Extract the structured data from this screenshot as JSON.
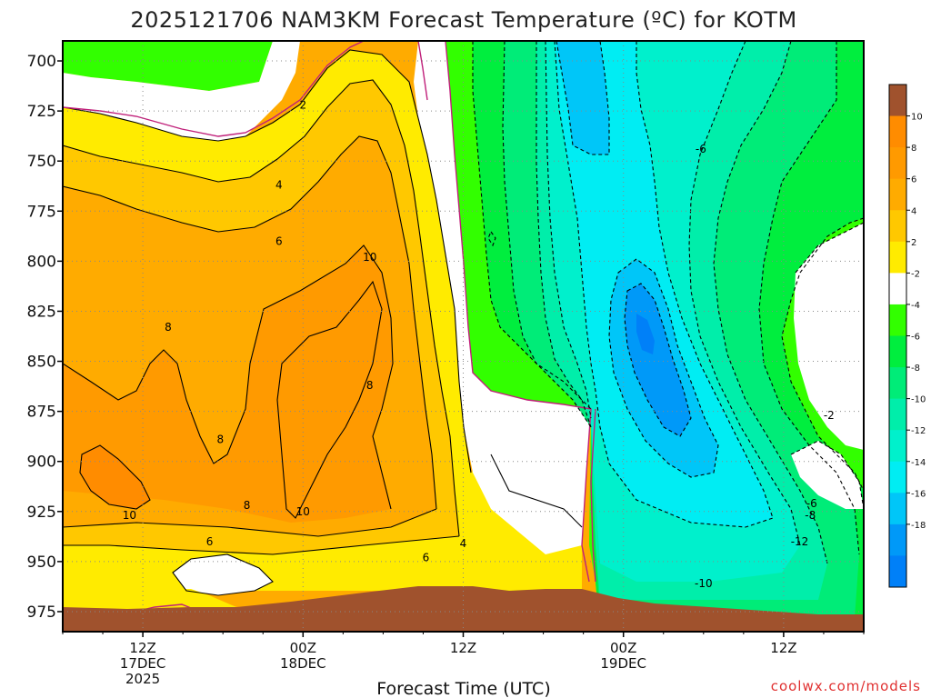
{
  "chart_data": {
    "type": "heatmap",
    "title": "2025121706 NAM3KM Forecast Temperature (ºC) for KOTM",
    "xlabel": "Forecast Time (UTC)",
    "ylabel": "",
    "y_ticks": [
      700,
      725,
      750,
      775,
      800,
      825,
      850,
      875,
      900,
      925,
      950,
      975
    ],
    "ylim": [
      975,
      700
    ],
    "x_ticks": [
      {
        "hour": 6,
        "l1": "12Z",
        "l2": "17DEC",
        "l3": "2025"
      },
      {
        "hour": 18,
        "l1": "00Z",
        "l2": "18DEC",
        "l3": ""
      },
      {
        "hour": 30,
        "l1": "12Z",
        "l2": "",
        "l3": ""
      },
      {
        "hour": 42,
        "l1": "00Z",
        "l2": "19DEC",
        "l3": ""
      },
      {
        "hour": 54,
        "l1": "12Z",
        "l2": "",
        "l3": ""
      }
    ],
    "xlim_hours": [
      0,
      60
    ],
    "colorbar": {
      "labels": [
        10,
        8,
        6,
        4,
        2,
        -2,
        -4,
        -6,
        -8,
        -10,
        -12,
        -14,
        -16,
        -18
      ],
      "bins": [
        {
          "range": "> 12",
          "color": "#a0522d"
        },
        {
          "range": "10 to 12",
          "color": "#ff8c00"
        },
        {
          "range": "8 to 10",
          "color": "#ff9a00"
        },
        {
          "range": "6 to 8",
          "color": "#ffab00"
        },
        {
          "range": "4 to 6",
          "color": "#ffc800"
        },
        {
          "range": "2 to 4",
          "color": "#ffeb00"
        },
        {
          "range": "-2 to 2",
          "color": "#ffffff"
        },
        {
          "range": "-4 to -2",
          "color": "#32ff00"
        },
        {
          "range": "-6 to -4",
          "color": "#00ee3e"
        },
        {
          "range": "-8 to -6",
          "color": "#00ec78"
        },
        {
          "range": "-10 to -8",
          "color": "#00eeaa"
        },
        {
          "range": "-12 to -10",
          "color": "#00f0cc"
        },
        {
          "range": "-14 to -12",
          "color": "#00edf3"
        },
        {
          "range": "-16 to -14",
          "color": "#00c6f8"
        },
        {
          "range": "-18 to -16",
          "color": "#0099f8"
        },
        {
          "range": "< -18",
          "color": "#0080f8"
        }
      ]
    },
    "contour_labels": [
      {
        "text": "2",
        "hour": 18.0,
        "hpa": 722
      },
      {
        "text": "4",
        "hour": 16.2,
        "hpa": 762
      },
      {
        "text": "6",
        "hour": 16.2,
        "hpa": 790
      },
      {
        "text": "10",
        "hour": 23.0,
        "hpa": 798
      },
      {
        "text": "8",
        "hour": 7.9,
        "hpa": 833
      },
      {
        "text": "8",
        "hour": 23.0,
        "hpa": 862
      },
      {
        "text": "8",
        "hour": 11.8,
        "hpa": 889
      },
      {
        "text": "10",
        "hour": 5.0,
        "hpa": 927
      },
      {
        "text": "8",
        "hour": 13.8,
        "hpa": 922
      },
      {
        "text": "10",
        "hour": 18.0,
        "hpa": 925
      },
      {
        "text": "6",
        "hour": 11.0,
        "hpa": 940
      },
      {
        "text": "6",
        "hour": 27.2,
        "hpa": 948
      },
      {
        "text": "4",
        "hour": 30.0,
        "hpa": 941
      },
      {
        "text": "-6",
        "hour": 47.8,
        "hpa": 744
      },
      {
        "text": "-2",
        "hour": 57.4,
        "hpa": 877
      },
      {
        "text": "-6",
        "hour": 56.1,
        "hpa": 921
      },
      {
        "text": "-8",
        "hour": 56.0,
        "hpa": 927
      },
      {
        "text": "-12",
        "hour": 55.2,
        "hpa": 940
      },
      {
        "text": "-10",
        "hour": 48.0,
        "hpa": 961
      }
    ],
    "frozen_min_temp_c": -18,
    "frozen_min_time": "~02Z 19DEC near 830 hPa",
    "warm_max_temp_c": 10,
    "grid": true,
    "colorbar_position": "right",
    "ground_color": "#a0522d"
  },
  "credit": "coolwx.com/models"
}
